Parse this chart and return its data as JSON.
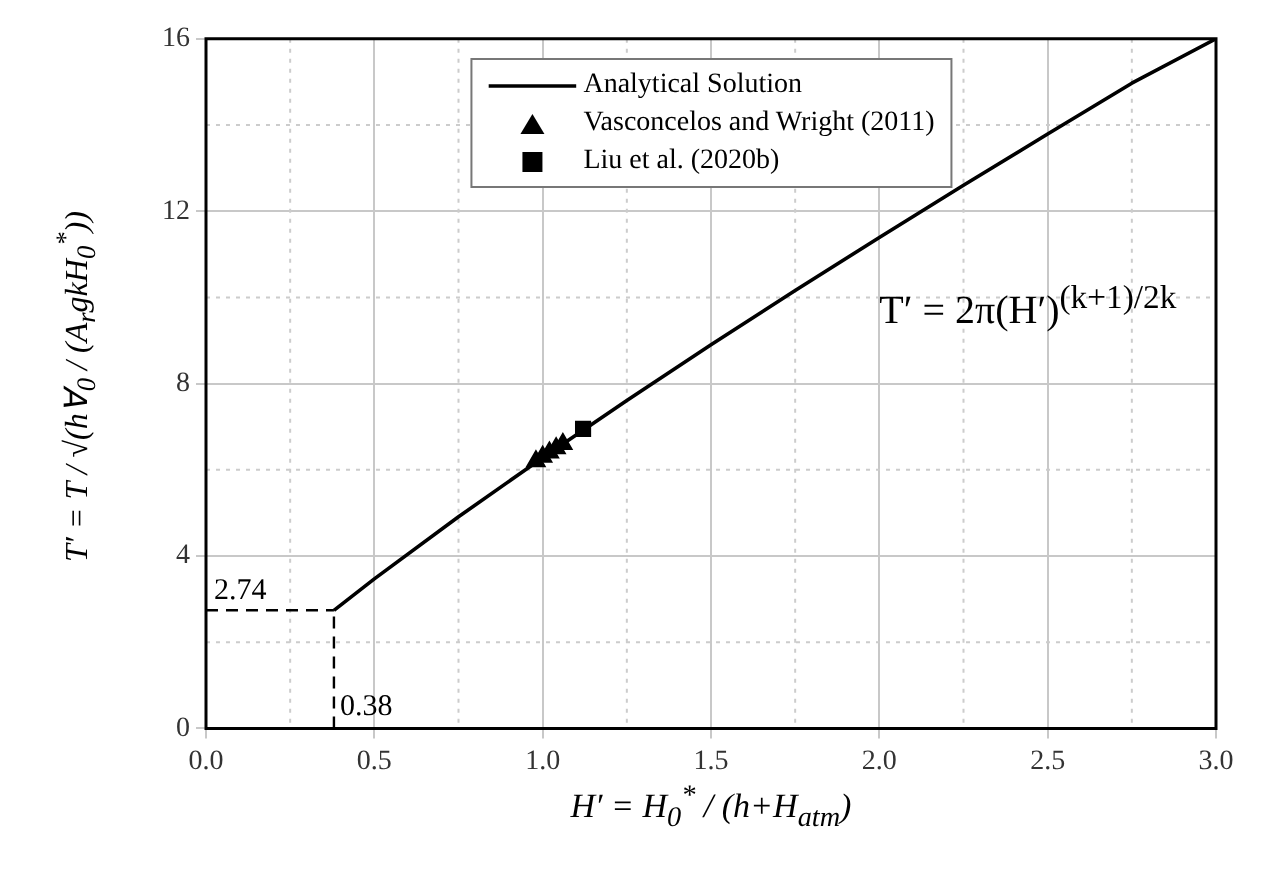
{
  "chart_data": {
    "type": "line",
    "xlabel": "H′ = H$_{0}$$^{*}$ / (h+H$_{atm}$)",
    "ylabel": "T′ = T / √(h∀$_{0}$ / (A$_{r}$gkH$_{0}$$^{*}$))",
    "xlim": [
      0,
      3
    ],
    "ylim": [
      0,
      16
    ],
    "xticks": [
      {
        "value": 0,
        "label": "0.0"
      },
      {
        "value": 0.25,
        "label": null
      },
      {
        "value": 0.5,
        "label": "0.5"
      },
      {
        "value": 0.75,
        "label": null
      },
      {
        "value": 1,
        "label": "1.0"
      },
      {
        "value": 1.25,
        "label": null
      },
      {
        "value": 1.5,
        "label": "1.5"
      },
      {
        "value": 1.75,
        "label": null
      },
      {
        "value": 2,
        "label": "2.0"
      },
      {
        "value": 2.25,
        "label": null
      },
      {
        "value": 2.5,
        "label": "2.5"
      },
      {
        "value": 2.75,
        "label": null
      },
      {
        "value": 3,
        "label": "3.0"
      }
    ],
    "yticks": [
      0,
      {
        "value": 2,
        "label": null
      },
      4,
      {
        "value": 6,
        "label": null
      },
      8,
      {
        "value": 10,
        "label": null
      },
      12,
      {
        "value": 14,
        "label": null
      },
      16
    ],
    "grid": true,
    "legend": "top",
    "series": [
      {
        "name": "Analytical Solution",
        "color": "#000000",
        "marker": "none",
        "line_style": "solid",
        "x": [
          0.38,
          0.5,
          0.75,
          1,
          1.25,
          1.5,
          1.75,
          2,
          2.25,
          2.5,
          2.75,
          3
        ],
        "values": [
          2.74,
          3.47,
          4.91,
          6.28,
          7.61,
          8.9,
          10.16,
          11.39,
          12.6,
          13.79,
          14.97,
          16
        ]
      },
      {
        "name": "Vasconcelos and Wright (2011)",
        "type": "scatter",
        "color": "#000000",
        "marker": "triangle",
        "x": [
          0.98,
          1,
          1.02,
          1.04,
          1.06
        ],
        "values": [
          6.2,
          6.3,
          6.4,
          6.5,
          6.6
        ]
      },
      {
        "name": "Liu et al. (2020b)",
        "type": "scatter",
        "color": "#000000",
        "marker": "square",
        "x": [
          1.12
        ],
        "values": [
          6.95
        ]
      }
    ],
    "ref_lines": [
      {
        "axis": "y",
        "value": 2.74,
        "label": "2.74",
        "line_style": "dashed",
        "color": "#000000"
      },
      {
        "axis": "x",
        "value": 0.38,
        "label": "0.38",
        "line_style": "dashed",
        "color": "#000000"
      }
    ],
    "annotations": [
      "T′ = 2π(H′)$^{(k+1)/2k}$"
    ]
  }
}
